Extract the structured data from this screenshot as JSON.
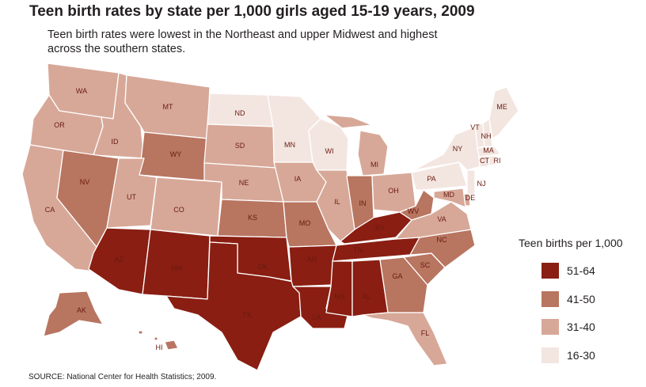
{
  "title": "Teen birth rates by state per 1,000 girls aged 15-19 years, 2009",
  "subtitle": "Teen birth rates were lowest in the Northeast and upper Midwest and highest across the southern states.",
  "legend": {
    "title": "Teen births per 1,000",
    "items": [
      {
        "label": "51-64",
        "color": "#8a1e12"
      },
      {
        "label": "41-50",
        "color": "#b87560"
      },
      {
        "label": "31-40",
        "color": "#d7a898"
      },
      {
        "label": "16-30",
        "color": "#f3e6e1"
      }
    ]
  },
  "source": "SOURCE: National Center for Health Statistics; 2009.",
  "states": {
    "WA": {
      "label": "WA",
      "class": "31-40"
    },
    "OR": {
      "label": "OR",
      "class": "31-40"
    },
    "CA": {
      "label": "CA",
      "class": "31-40"
    },
    "ID": {
      "label": "ID",
      "class": "31-40"
    },
    "NV": {
      "label": "NV",
      "class": "41-50"
    },
    "MT": {
      "label": "MT",
      "class": "31-40"
    },
    "WY": {
      "label": "WY",
      "class": "41-50"
    },
    "UT": {
      "label": "UT",
      "class": "31-40"
    },
    "CO": {
      "label": "CO",
      "class": "31-40"
    },
    "AZ": {
      "label": "AZ",
      "class": "51-64"
    },
    "NM": {
      "label": "NM",
      "class": "51-64"
    },
    "ND": {
      "label": "ND",
      "class": "16-30"
    },
    "SD": {
      "label": "SD",
      "class": "31-40"
    },
    "NE": {
      "label": "NE",
      "class": "31-40"
    },
    "KS": {
      "label": "KS",
      "class": "41-50"
    },
    "OK": {
      "label": "OK",
      "class": "51-64"
    },
    "TX": {
      "label": "TX",
      "class": "51-64"
    },
    "MN": {
      "label": "MN",
      "class": "16-30"
    },
    "IA": {
      "label": "IA",
      "class": "31-40"
    },
    "MO": {
      "label": "MO",
      "class": "41-50"
    },
    "AR": {
      "label": "AR",
      "class": "51-64"
    },
    "LA": {
      "label": "LA",
      "class": "51-64"
    },
    "WI": {
      "label": "WI",
      "class": "16-30"
    },
    "IL": {
      "label": "IL",
      "class": "31-40"
    },
    "MI": {
      "label": "MI",
      "class": "31-40"
    },
    "IN": {
      "label": "IN",
      "class": "41-50"
    },
    "OH": {
      "label": "OH",
      "class": "31-40"
    },
    "KY": {
      "label": "KY",
      "class": "51-64"
    },
    "TN": {
      "label": "TN",
      "class": "51-64"
    },
    "MS": {
      "label": "MS",
      "class": "51-64"
    },
    "AL": {
      "label": "AL",
      "class": "51-64"
    },
    "GA": {
      "label": "GA",
      "class": "41-50"
    },
    "FL": {
      "label": "FL",
      "class": "31-40"
    },
    "SC": {
      "label": "SC",
      "class": "41-50"
    },
    "NC": {
      "label": "NC",
      "class": "41-50"
    },
    "VA": {
      "label": "VA",
      "class": "31-40"
    },
    "WV": {
      "label": "WV",
      "class": "41-50"
    },
    "PA": {
      "label": "PA",
      "class": "16-30"
    },
    "NY": {
      "label": "NY",
      "class": "16-30"
    },
    "NJ": {
      "label": "NJ",
      "class": "16-30"
    },
    "DE": {
      "label": "DE",
      "class": "31-40"
    },
    "MD": {
      "label": "MD",
      "class": "31-40"
    },
    "CT": {
      "label": "CT",
      "class": "16-30"
    },
    "RI": {
      "label": "RI",
      "class": "16-30"
    },
    "MA": {
      "label": "MA",
      "class": "16-30"
    },
    "VT": {
      "label": "VT",
      "class": "16-30"
    },
    "NH": {
      "label": "NH",
      "class": "16-30"
    },
    "ME": {
      "label": "ME",
      "class": "16-30"
    },
    "AK": {
      "label": "AK",
      "class": "41-50"
    },
    "HI": {
      "label": "HI",
      "class": "41-50"
    }
  }
}
